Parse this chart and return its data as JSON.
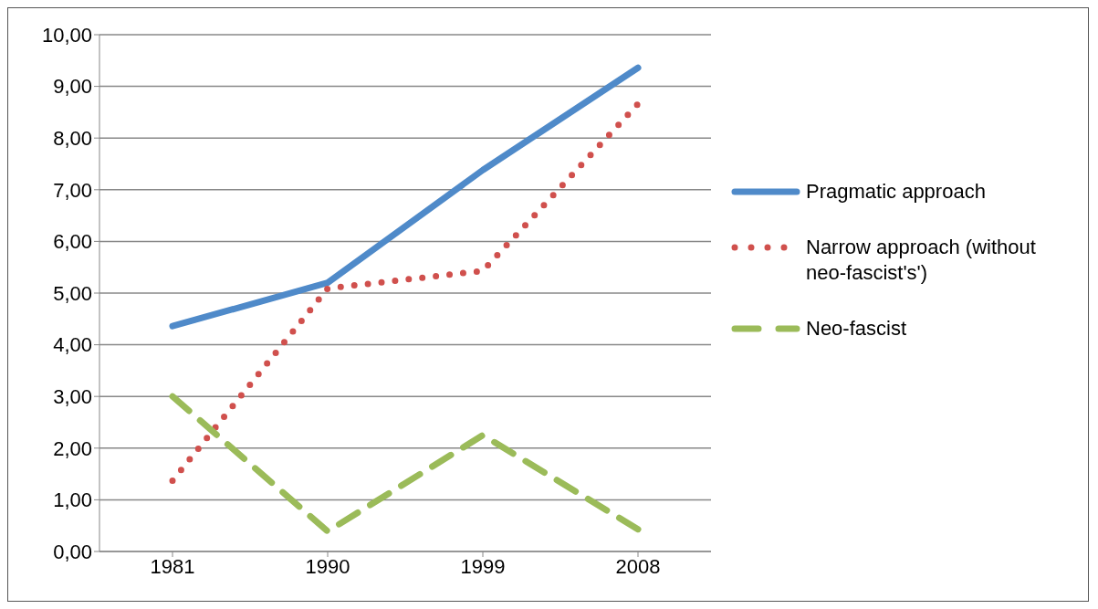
{
  "chart_data": {
    "type": "line",
    "categories": [
      "1981",
      "1990",
      "1999",
      "2008"
    ],
    "series": [
      {
        "name": "Pragmatic approach",
        "color": "#4f8ac9",
        "line_style": "solid",
        "values": [
          4.36,
          5.2,
          7.38,
          9.36
        ]
      },
      {
        "name": "Narrow approach (without neo-fascist's')",
        "color": "#d0504d",
        "line_style": "dotted",
        "values": [
          1.37,
          5.09,
          5.43,
          8.66
        ]
      },
      {
        "name": "Neo-fascist",
        "color": "#9bbb59",
        "line_style": "dashed",
        "values": [
          3.0,
          0.39,
          2.25,
          0.43
        ]
      }
    ],
    "ylim": [
      0,
      10
    ],
    "yticks": [
      {
        "value": 0,
        "label": "0,00"
      },
      {
        "value": 1,
        "label": "1,00"
      },
      {
        "value": 2,
        "label": "2,00"
      },
      {
        "value": 3,
        "label": "3,00"
      },
      {
        "value": 4,
        "label": "4,00"
      },
      {
        "value": 5,
        "label": "5,00"
      },
      {
        "value": 6,
        "label": "6,00"
      },
      {
        "value": 7,
        "label": "7,00"
      },
      {
        "value": 8,
        "label": "8,00"
      },
      {
        "value": 9,
        "label": "9,00"
      },
      {
        "value": 10,
        "label": "10,00"
      }
    ],
    "grid": "y",
    "legend": "right",
    "marker": "none"
  }
}
